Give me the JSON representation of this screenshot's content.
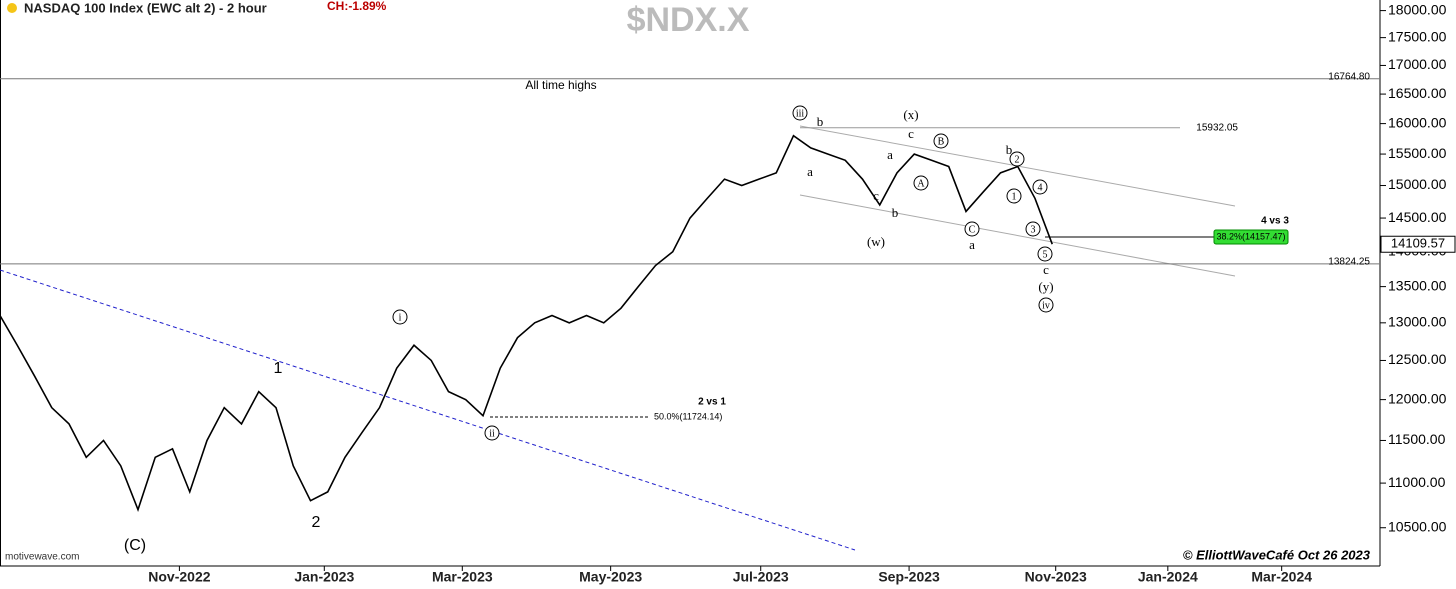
{
  "chart_data": {
    "type": "line",
    "title": "NASDAQ 100 Index (EWC alt 2) - 2 hour",
    "change_label": "CH:-1.89%",
    "symbol": "$NDX.X",
    "source": "motivewave.com",
    "credit": "© ElliottWaveCafé Oct 26 2023",
    "color": "#000000",
    "log_scale": true,
    "categories": [
      null,
      null,
      null,
      null,
      null,
      null,
      null,
      null,
      null,
      null,
      null,
      null,
      null,
      null,
      null,
      null,
      null,
      null,
      null,
      null,
      null,
      null,
      null,
      null,
      null,
      null,
      null,
      null,
      null,
      null,
      null,
      null,
      null,
      null,
      null,
      null,
      null,
      null,
      null,
      null,
      null,
      null,
      null,
      null,
      null,
      null,
      null,
      null,
      null,
      null,
      null,
      null,
      null,
      null,
      null,
      null,
      null,
      null,
      null,
      null,
      null,
      null
    ],
    "values": [
      13100,
      12700,
      12300,
      11900,
      11700,
      11300,
      11500,
      11200,
      10700,
      11300,
      11400,
      10900,
      11500,
      11900,
      11700,
      12100,
      11900,
      11200,
      10800,
      10900,
      11300,
      11600,
      11900,
      12400,
      12700,
      12500,
      12100,
      12000,
      11800,
      12400,
      12800,
      13000,
      13100,
      13000,
      13100,
      13000,
      13200,
      13500,
      13800,
      14000,
      14500,
      14800,
      15100,
      15000,
      15100,
      15200,
      15800,
      15600,
      15500,
      15400,
      15100,
      14700,
      15200,
      15500,
      15400,
      15300,
      14600,
      14900,
      15200,
      15300,
      14800,
      14110
    ],
    "xlim": [
      0,
      80
    ],
    "xticks": [
      {
        "value": 10.4,
        "label": "Nov-2022"
      },
      {
        "value": 18.8,
        "label": "Jan-2023"
      },
      {
        "value": 26.8,
        "label": "Mar-2023"
      },
      {
        "value": 35.4,
        "label": "May-2023"
      },
      {
        "value": 44.1,
        "label": "Jul-2023"
      },
      {
        "value": 52.7,
        "label": "Sep-2023"
      },
      {
        "value": 61.2,
        "label": "Nov-2023"
      },
      {
        "value": 67.7,
        "label": "Jan-2024"
      },
      {
        "value": 74.3,
        "label": "Mar-2024"
      }
    ],
    "ylim": [
      10100,
      18200
    ],
    "yticks": [
      {
        "value": 10500,
        "label": "10500.00"
      },
      {
        "value": 11000,
        "label": "11000.00"
      },
      {
        "value": 11500,
        "label": "11500.00"
      },
      {
        "value": 12000,
        "label": "12000.00"
      },
      {
        "value": 12500,
        "label": "12500.00"
      },
      {
        "value": 13000,
        "label": "13000.00"
      },
      {
        "value": 13500,
        "label": "13500.00"
      },
      {
        "value": 14000,
        "label": "14000.00"
      },
      {
        "value": 14500,
        "label": "14500.00"
      },
      {
        "value": 15000,
        "label": "15000.00"
      },
      {
        "value": 15500,
        "label": "15500.00"
      },
      {
        "value": 16000,
        "label": "16000.00"
      },
      {
        "value": 16500,
        "label": "16500.00"
      },
      {
        "value": 17000,
        "label": "17000.00"
      },
      {
        "value": 17500,
        "label": "17500.00"
      },
      {
        "value": 18000,
        "label": "18000.00"
      }
    ],
    "levels": [
      {
        "value": 16764.8,
        "label": "16764.80"
      },
      {
        "value": 13824.25,
        "label": "13824.25"
      },
      {
        "value": 15932.05,
        "label": "15932.05"
      }
    ],
    "last_price": {
      "value": 14109.57,
      "label": "14109.57"
    },
    "annotations": [
      "All time highs",
      "2 vs 1",
      "50.0%(11724.14)",
      "4 vs 3",
      "38.2%(14157.47)"
    ],
    "wave_labels": [
      "(C)",
      "1",
      "2",
      "i",
      "ii",
      "iii",
      "b",
      "a",
      "c",
      "(w)",
      "b",
      "a",
      "c",
      "(x)",
      "A",
      "B",
      "C",
      "a",
      "b",
      "2",
      "1",
      "4",
      "3",
      "5",
      "c",
      "(y)",
      "iv"
    ]
  }
}
